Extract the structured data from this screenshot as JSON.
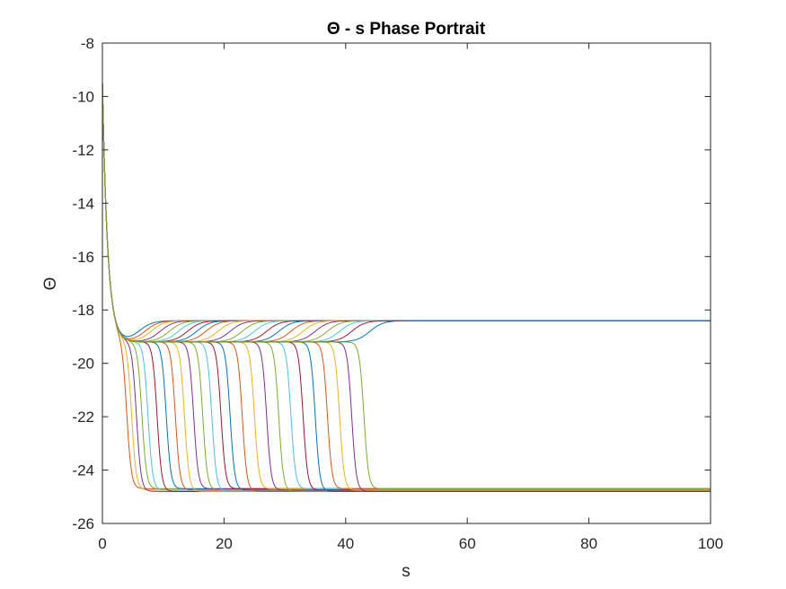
{
  "chart_data": {
    "type": "line",
    "title": "Θ - s Phase Portrait",
    "xlabel": "s",
    "ylabel": "Θ",
    "xlim": [
      0,
      100
    ],
    "ylim": [
      -26,
      -8
    ],
    "xticks": [
      0,
      20,
      40,
      60,
      80,
      100
    ],
    "xtick_labels": [
      "0",
      "20",
      "40",
      "60",
      "80",
      "100"
    ],
    "yticks": [
      -26,
      -24,
      -22,
      -20,
      -18,
      -16,
      -14,
      -12,
      -10,
      -8
    ],
    "ytick_labels": [
      "-26",
      "-24",
      "-22",
      "-20",
      "-18",
      "-16",
      "-14",
      "-12",
      "-10",
      "-8"
    ],
    "grid": false,
    "legend": "none",
    "colors": [
      "#0072BD",
      "#D95319",
      "#EDB120",
      "#7E2F8E",
      "#77AC30",
      "#4DBEEE",
      "#A2142F"
    ],
    "initial_value": -9.5,
    "plateau_value": -19.2,
    "upper_final_value": -18.4,
    "lower_final_values": [
      -24.7,
      -24.75,
      -24.8
    ],
    "upper_transitions_s": [
      6,
      7,
      8,
      9.5,
      11,
      12.5,
      14,
      15.5,
      17,
      19,
      21,
      23,
      25,
      27,
      29,
      31,
      33,
      35,
      37,
      39,
      41,
      44
    ],
    "lower_transitions_s": [
      4,
      4.8,
      5.6,
      6.5,
      7.5,
      9,
      10.5,
      12,
      13.5,
      15,
      16.5,
      18,
      19.5,
      21,
      23,
      25,
      27,
      29,
      31,
      33,
      35,
      37,
      39,
      41,
      43
    ]
  }
}
